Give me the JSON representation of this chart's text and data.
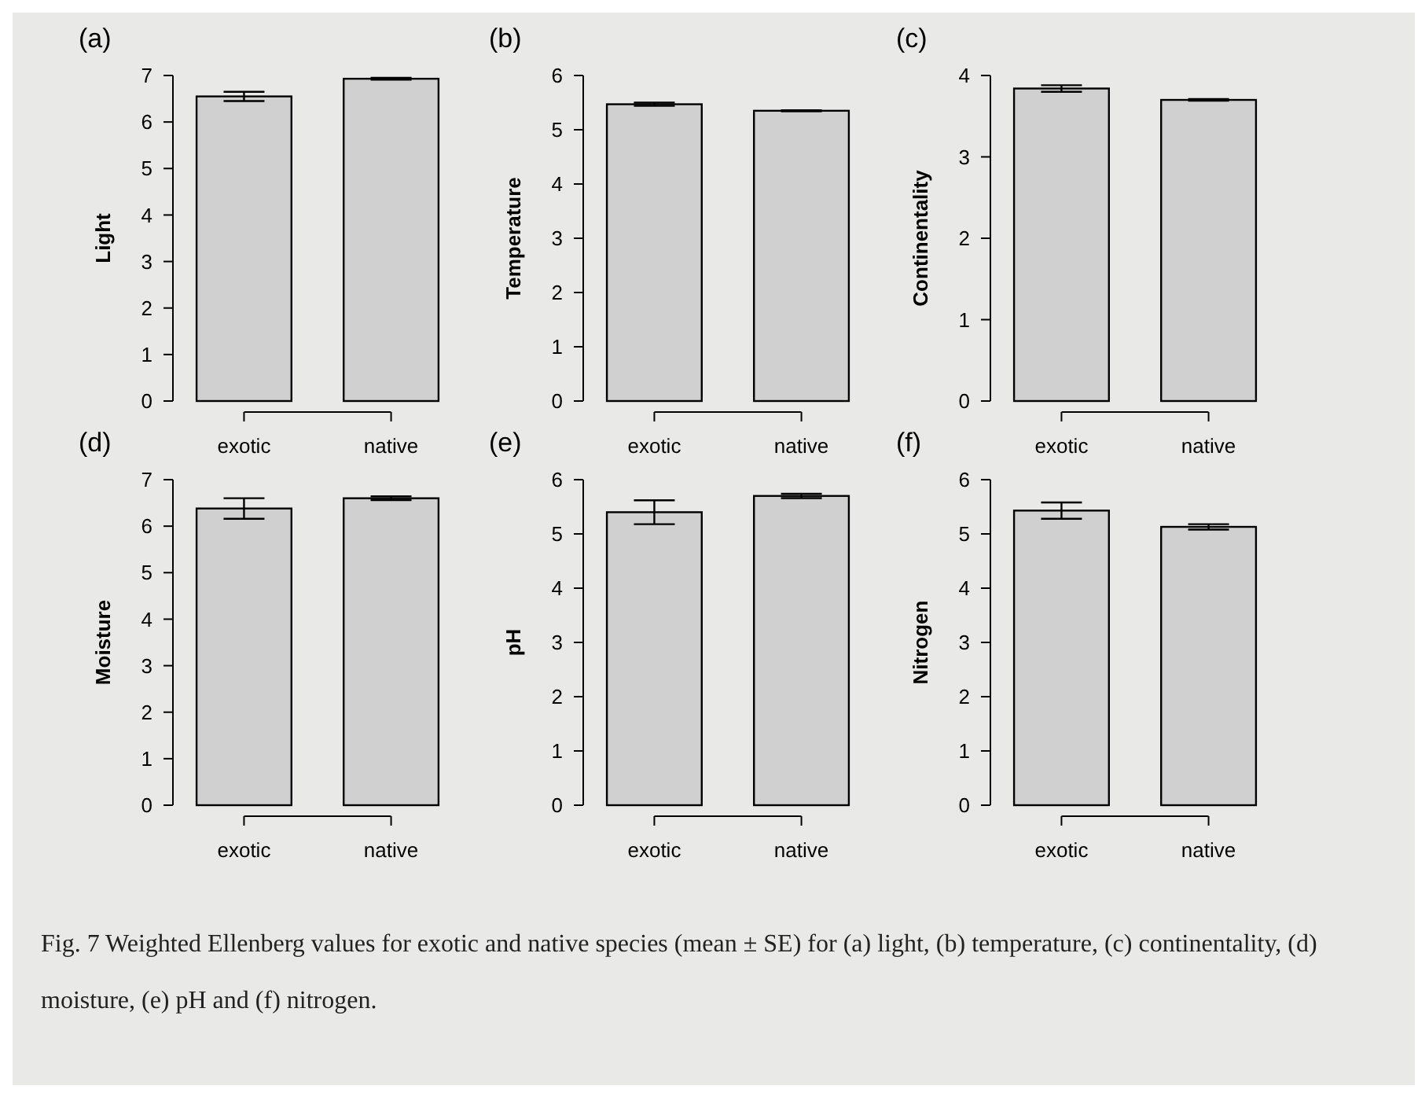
{
  "chart_data": [
    {
      "type": "bar",
      "title": "(a)",
      "ylabel": "Light",
      "categories": [
        "exotic",
        "native"
      ],
      "values": [
        6.55,
        6.93
      ],
      "errors": [
        0.1,
        0.02
      ],
      "color": "#d0d0d0",
      "ylim": [
        0,
        7
      ],
      "yticks": [
        0,
        1,
        2,
        3,
        4,
        5,
        6,
        7
      ]
    },
    {
      "type": "bar",
      "title": "(b)",
      "ylabel": "Temperature",
      "categories": [
        "exotic",
        "native"
      ],
      "values": [
        5.47,
        5.35
      ],
      "errors": [
        0.03,
        0.01
      ],
      "color": "#d0d0d0",
      "ylim": [
        0,
        6
      ],
      "yticks": [
        0,
        1,
        2,
        3,
        4,
        5,
        6
      ]
    },
    {
      "type": "bar",
      "title": "(c)",
      "ylabel": "Continentality",
      "categories": [
        "exotic",
        "native"
      ],
      "values": [
        3.84,
        3.7
      ],
      "errors": [
        0.04,
        0.01
      ],
      "color": "#d0d0d0",
      "ylim": [
        0,
        4
      ],
      "yticks": [
        0,
        1,
        2,
        3,
        4
      ]
    },
    {
      "type": "bar",
      "title": "(d)",
      "ylabel": "Moisture",
      "categories": [
        "exotic",
        "native"
      ],
      "values": [
        6.38,
        6.6
      ],
      "errors": [
        0.22,
        0.04
      ],
      "color": "#d0d0d0",
      "ylim": [
        0,
        7
      ],
      "yticks": [
        0,
        1,
        2,
        3,
        4,
        5,
        6,
        7
      ]
    },
    {
      "type": "bar",
      "title": "(e)",
      "ylabel": "pH",
      "categories": [
        "exotic",
        "native"
      ],
      "values": [
        5.4,
        5.7
      ],
      "errors": [
        0.22,
        0.04
      ],
      "color": "#d0d0d0",
      "ylim": [
        0,
        6
      ],
      "yticks": [
        0,
        1,
        2,
        3,
        4,
        5,
        6
      ]
    },
    {
      "type": "bar",
      "title": "(f)",
      "ylabel": "Nitrogen",
      "categories": [
        "exotic",
        "native"
      ],
      "values": [
        5.43,
        5.13
      ],
      "errors": [
        0.15,
        0.05
      ],
      "color": "#d0d0d0",
      "ylim": [
        0,
        6
      ],
      "yticks": [
        0,
        1,
        2,
        3,
        4,
        5,
        6
      ]
    },
    {
      "type": "other",
      "annotations": [
        "Fig. 7 Weighted Ellenberg values for exotic and native species (mean ± SE) for (a) light, (b) temperature, (c) continentality, (d) moisture, (e) pH and (f) nitrogen."
      ]
    }
  ]
}
